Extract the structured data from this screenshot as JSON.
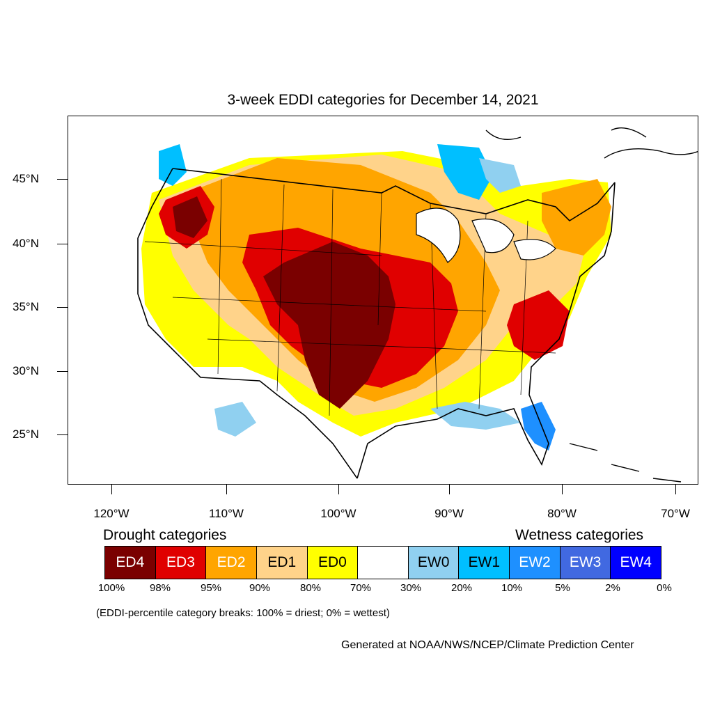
{
  "title": "3-week EDDI categories for December 14, 2021",
  "lat_labels": [
    "45°N",
    "40°N",
    "35°N",
    "30°N",
    "25°N"
  ],
  "lon_labels": [
    "120°W",
    "110°W",
    "100°W",
    "90°W",
    "80°W",
    "70°W"
  ],
  "legend": {
    "drought_heading": "Drought categories",
    "wetness_heading": "Wetness categories",
    "categories": [
      {
        "label": "ED4",
        "color": "#7a0000",
        "text_color": "#ffffff"
      },
      {
        "label": "ED3",
        "color": "#e00000",
        "text_color": "#ffffff"
      },
      {
        "label": "ED2",
        "color": "#ffa500",
        "text_color": "#ffffff"
      },
      {
        "label": "ED1",
        "color": "#ffd38a",
        "text_color": "#000000"
      },
      {
        "label": "ED0",
        "color": "#ffff00",
        "text_color": "#000000"
      },
      {
        "label": "",
        "color": "#ffffff",
        "text_color": "#000000"
      },
      {
        "label": "EW0",
        "color": "#90d0f0",
        "text_color": "#000000"
      },
      {
        "label": "EW1",
        "color": "#00bfff",
        "text_color": "#000000"
      },
      {
        "label": "EW2",
        "color": "#1e90ff",
        "text_color": "#ffffff"
      },
      {
        "label": "EW3",
        "color": "#4169e1",
        "text_color": "#ffffff"
      },
      {
        "label": "EW4",
        "color": "#0000ff",
        "text_color": "#ffffff"
      }
    ],
    "percentiles": [
      "100%",
      "98%",
      "95%",
      "90%",
      "80%",
      "70%",
      "30%",
      "20%",
      "10%",
      "5%",
      "2%",
      "0%"
    ]
  },
  "note": "(EDDI-percentile category breaks: 100% = driest; 0% = wettest)",
  "credit": "Generated at NOAA/NWS/NCEP/Climate Prediction Center"
}
